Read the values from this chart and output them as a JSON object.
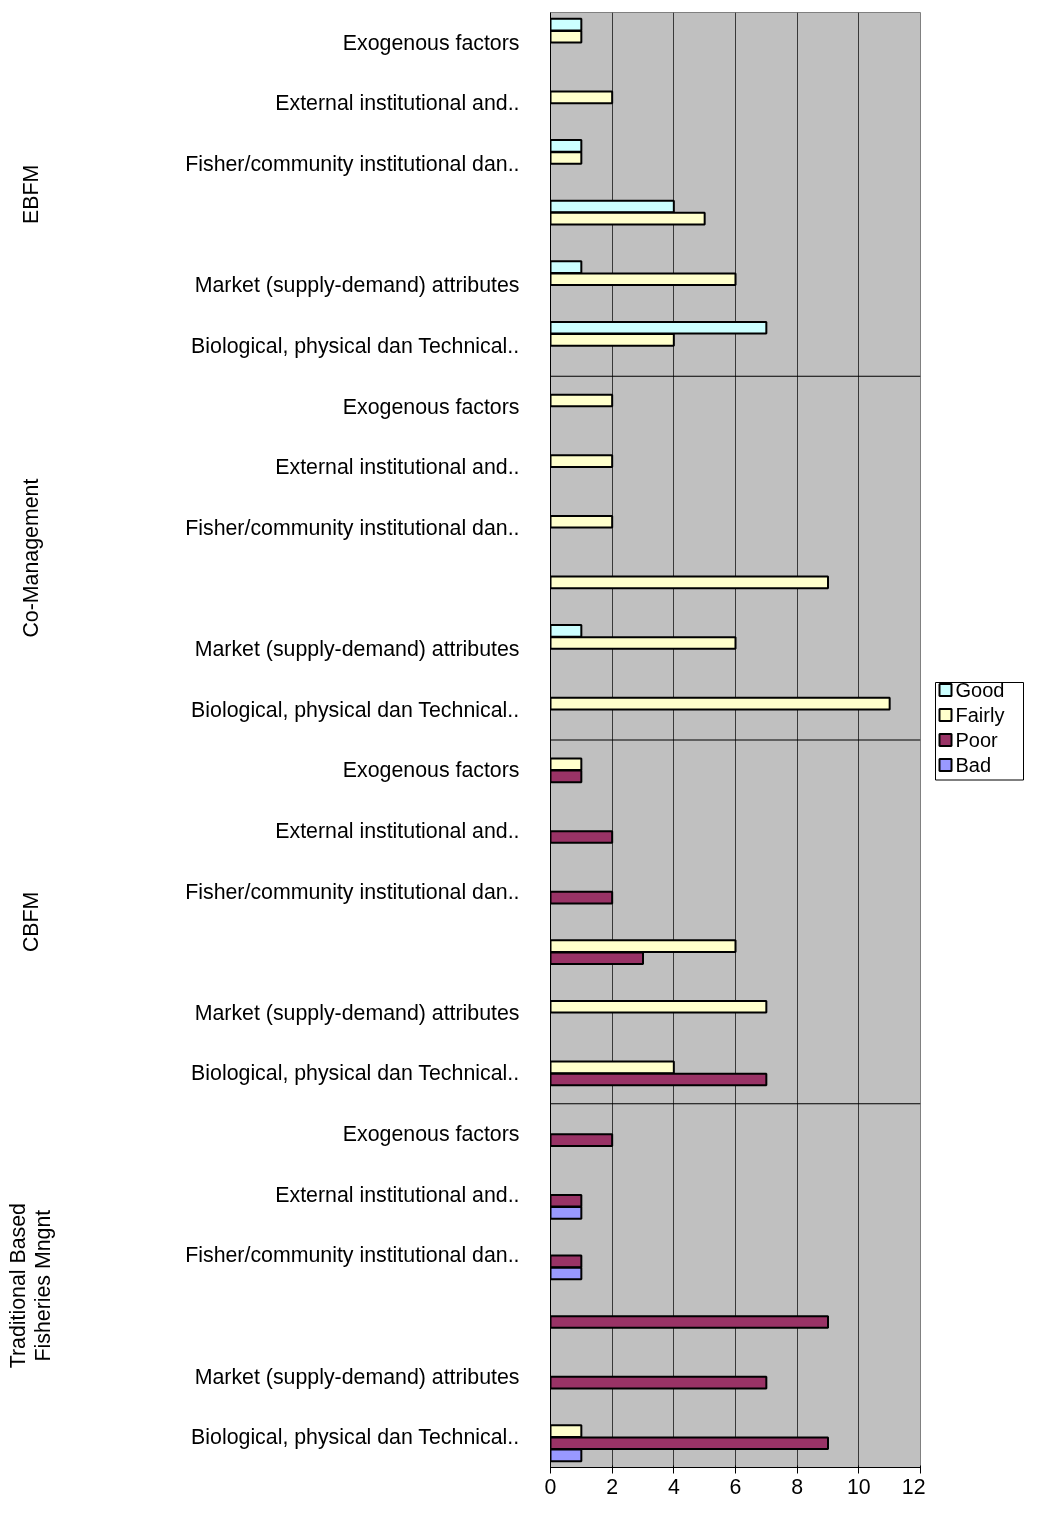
{
  "chart_data": {
    "type": "bar",
    "orientation": "horizontal",
    "categories": [
      "Exogenous factors",
      "External institutional and..",
      "Fisher/community institutional dan..",
      null,
      "Market (supply-demand) attributes",
      "Biological, physical dan Technical..",
      "Exogenous factors",
      "External institutional and..",
      "Fisher/community institutional dan..",
      null,
      "Market (supply-demand) attributes",
      "Biological, physical dan Technical..",
      "Exogenous factors",
      "External institutional and..",
      "Fisher/community institutional dan..",
      null,
      "Market (supply-demand) attributes",
      "Biological, physical dan Technical..",
      "Exogenous factors",
      "External institutional and..",
      "Fisher/community institutional dan..",
      null,
      "Market (supply-demand) attributes",
      "Biological, physical dan Technical.."
    ],
    "series": [
      {
        "name": "Good",
        "color": "#ccffff",
        "values": [
          1,
          null,
          1,
          4,
          1,
          7,
          null,
          null,
          null,
          null,
          1,
          null,
          null,
          null,
          null,
          null,
          null,
          null,
          null,
          null,
          null,
          null,
          null,
          null
        ]
      },
      {
        "name": "Fairly",
        "color": "#ffffcc",
        "values": [
          1,
          2,
          1,
          5,
          6,
          4,
          2,
          2,
          2,
          9,
          6,
          11,
          1,
          null,
          null,
          6,
          7,
          4,
          null,
          null,
          null,
          null,
          null,
          1
        ]
      },
      {
        "name": "Poor",
        "color": "#993366",
        "values": [
          null,
          null,
          null,
          null,
          null,
          null,
          null,
          null,
          null,
          null,
          null,
          null,
          1,
          2,
          2,
          3,
          null,
          7,
          2,
          1,
          1,
          9,
          7,
          9
        ]
      },
      {
        "name": "Bad",
        "color": "#9999ff",
        "values": [
          null,
          null,
          null,
          null,
          null,
          null,
          null,
          null,
          null,
          null,
          null,
          null,
          null,
          null,
          null,
          null,
          null,
          null,
          null,
          1,
          1,
          null,
          null,
          1
        ]
      }
    ],
    "annotations": [
      "EBFM",
      "Co-Management",
      "CBFM",
      "Traditional Based Fisheries Mngnt"
    ],
    "xlim": [
      0,
      12
    ],
    "xticks": [
      0,
      2,
      4,
      6,
      8,
      10,
      12
    ],
    "grid": "x",
    "legend": "right"
  }
}
